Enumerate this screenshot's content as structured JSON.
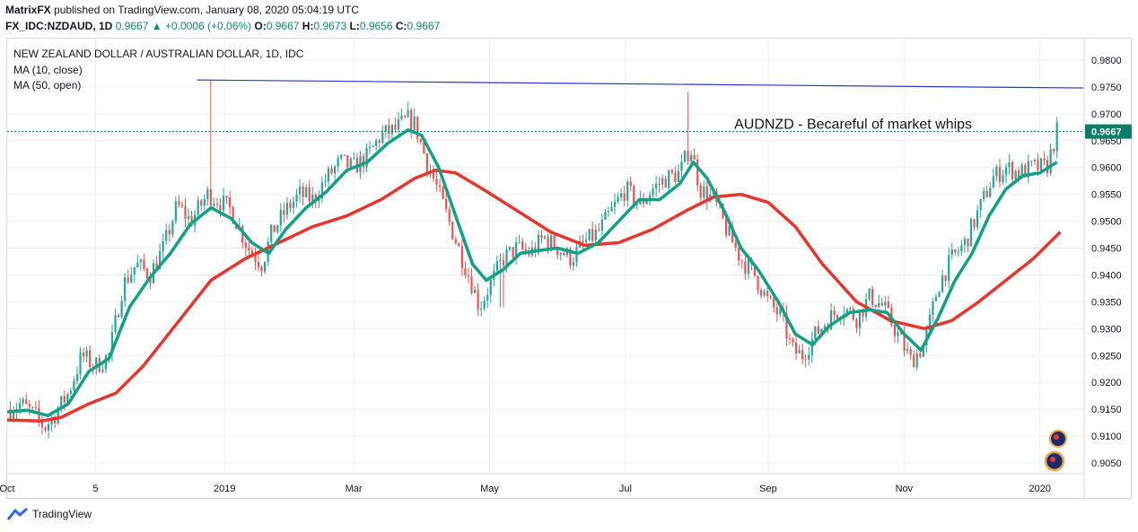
{
  "header": {
    "publisher": "MatrixFX",
    "published_text": " published on TradingView.com, January 08, 2020 05:04:19 UTC",
    "symbol": "FX_IDC:NZDAUD, 1D",
    "last": "0.9667",
    "arrow": "▲",
    "change": "+0.0006 (+0.06%)",
    "o_label": "O:",
    "o": "0.9667",
    "h_label": "H:",
    "h": "0.9673",
    "l_label": "L:",
    "l": "0.9656",
    "c_label": "C:",
    "c": "0.9667"
  },
  "footer": {
    "brand": "TradingView"
  },
  "chart_data": {
    "type": "candlestick",
    "title": "NEW ZEALAND DOLLAR / AUSTRALIAN DOLLAR, 1D, IDC",
    "indicators": [
      {
        "label": "MA (10, close)",
        "color": "#12a086"
      },
      {
        "label": "MA (50, open)",
        "color": "#e8352e"
      }
    ],
    "ylim": [
      0.903,
      0.984
    ],
    "y_ticks": [
      "0.9800",
      "0.9750",
      "0.9700",
      "0.9650",
      "0.9600",
      "0.9550",
      "0.9500",
      "0.9450",
      "0.9400",
      "0.9350",
      "0.9300",
      "0.9250",
      "0.9200",
      "0.9150",
      "0.9100",
      "0.9050"
    ],
    "x_labels": [
      "Oct",
      "5",
      "2019",
      "Mar",
      "May",
      "Jul",
      "Sep",
      "Nov",
      "2020"
    ],
    "x_label_months": [
      0,
      1.3,
      3.2,
      5.1,
      7.1,
      9.1,
      11.2,
      13.2,
      15.2
    ],
    "x_max_months": 15.85,
    "current_price": 0.9667,
    "current_price_label": "0.9667",
    "annotation": "AUDNZD - Becareful of market whips",
    "annotation_position": [
      10.7,
      0.9672
    ],
    "trendline": [
      [
        2.8,
        0.9763
      ],
      [
        15.85,
        0.9748
      ]
    ],
    "close_path": [
      [
        0.0,
        0.915
      ],
      [
        0.2,
        0.916
      ],
      [
        0.4,
        0.914
      ],
      [
        0.55,
        0.9115
      ],
      [
        0.7,
        0.914
      ],
      [
        0.9,
        0.918
      ],
      [
        1.1,
        0.925
      ],
      [
        1.3,
        0.923
      ],
      [
        1.5,
        0.925
      ],
      [
        1.7,
        0.938
      ],
      [
        1.9,
        0.942
      ],
      [
        2.1,
        0.94
      ],
      [
        2.3,
        0.945
      ],
      [
        2.5,
        0.953
      ],
      [
        2.7,
        0.95
      ],
      [
        2.95,
        0.955
      ],
      [
        3.1,
        0.954
      ],
      [
        3.3,
        0.952
      ],
      [
        3.55,
        0.945
      ],
      [
        3.75,
        0.942
      ],
      [
        3.9,
        0.948
      ],
      [
        4.1,
        0.952
      ],
      [
        4.3,
        0.955
      ],
      [
        4.5,
        0.954
      ],
      [
        4.7,
        0.958
      ],
      [
        4.9,
        0.961
      ],
      [
        5.1,
        0.96
      ],
      [
        5.3,
        0.962
      ],
      [
        5.5,
        0.966
      ],
      [
        5.7,
        0.967
      ],
      [
        5.9,
        0.969
      ],
      [
        6.0,
        0.968
      ],
      [
        6.15,
        0.962
      ],
      [
        6.3,
        0.957
      ],
      [
        6.5,
        0.95
      ],
      [
        6.7,
        0.943
      ],
      [
        6.85,
        0.938
      ],
      [
        6.95,
        0.934
      ],
      [
        7.1,
        0.938
      ],
      [
        7.3,
        0.943
      ],
      [
        7.5,
        0.945
      ],
      [
        7.7,
        0.944
      ],
      [
        7.9,
        0.947
      ],
      [
        8.1,
        0.945
      ],
      [
        8.3,
        0.943
      ],
      [
        8.5,
        0.946
      ],
      [
        8.7,
        0.948
      ],
      [
        8.9,
        0.952
      ],
      [
        9.1,
        0.956
      ],
      [
        9.3,
        0.953
      ],
      [
        9.5,
        0.956
      ],
      [
        9.7,
        0.958
      ],
      [
        9.9,
        0.959
      ],
      [
        10.05,
        0.964
      ],
      [
        10.2,
        0.956
      ],
      [
        10.4,
        0.954
      ],
      [
        10.6,
        0.948
      ],
      [
        10.8,
        0.943
      ],
      [
        11.0,
        0.94
      ],
      [
        11.2,
        0.935
      ],
      [
        11.4,
        0.932
      ],
      [
        11.55,
        0.926
      ],
      [
        11.7,
        0.925
      ],
      [
        11.9,
        0.929
      ],
      [
        12.1,
        0.932
      ],
      [
        12.3,
        0.934
      ],
      [
        12.5,
        0.932
      ],
      [
        12.7,
        0.936
      ],
      [
        12.9,
        0.934
      ],
      [
        13.1,
        0.929
      ],
      [
        13.3,
        0.924
      ],
      [
        13.5,
        0.927
      ],
      [
        13.7,
        0.938
      ],
      [
        13.9,
        0.943
      ],
      [
        14.1,
        0.946
      ],
      [
        14.3,
        0.952
      ],
      [
        14.5,
        0.958
      ],
      [
        14.7,
        0.96
      ],
      [
        14.9,
        0.959
      ],
      [
        15.1,
        0.96
      ],
      [
        15.3,
        0.96
      ],
      [
        15.45,
        0.9667
      ]
    ],
    "wick_spikes": [
      {
        "t": 3.0,
        "high": 0.9762,
        "low": 0.952
      },
      {
        "t": 10.02,
        "high": 0.974,
        "low": 0.962
      },
      {
        "t": 7.28,
        "high": 0.944,
        "low": 0.934
      }
    ],
    "ma10_path": [
      [
        0.0,
        0.9145
      ],
      [
        0.3,
        0.9148
      ],
      [
        0.6,
        0.9138
      ],
      [
        0.9,
        0.916
      ],
      [
        1.2,
        0.922
      ],
      [
        1.5,
        0.9245
      ],
      [
        1.8,
        0.934
      ],
      [
        2.1,
        0.9395
      ],
      [
        2.4,
        0.944
      ],
      [
        2.7,
        0.9495
      ],
      [
        3.0,
        0.9525
      ],
      [
        3.3,
        0.9505
      ],
      [
        3.6,
        0.946
      ],
      [
        3.85,
        0.944
      ],
      [
        4.1,
        0.9485
      ],
      [
        4.4,
        0.9525
      ],
      [
        4.7,
        0.9555
      ],
      [
        5.0,
        0.9595
      ],
      [
        5.3,
        0.961
      ],
      [
        5.6,
        0.9645
      ],
      [
        5.9,
        0.967
      ],
      [
        6.1,
        0.966
      ],
      [
        6.35,
        0.96
      ],
      [
        6.6,
        0.951
      ],
      [
        6.85,
        0.942
      ],
      [
        7.05,
        0.939
      ],
      [
        7.3,
        0.941
      ],
      [
        7.55,
        0.944
      ],
      [
        7.8,
        0.9445
      ],
      [
        8.1,
        0.945
      ],
      [
        8.4,
        0.944
      ],
      [
        8.7,
        0.946
      ],
      [
        9.0,
        0.95
      ],
      [
        9.3,
        0.954
      ],
      [
        9.6,
        0.954
      ],
      [
        9.9,
        0.957
      ],
      [
        10.1,
        0.961
      ],
      [
        10.3,
        0.958
      ],
      [
        10.55,
        0.952
      ],
      [
        10.8,
        0.945
      ],
      [
        11.05,
        0.941
      ],
      [
        11.35,
        0.935
      ],
      [
        11.6,
        0.929
      ],
      [
        11.85,
        0.927
      ],
      [
        12.1,
        0.9305
      ],
      [
        12.4,
        0.933
      ],
      [
        12.7,
        0.9335
      ],
      [
        12.95,
        0.933
      ],
      [
        13.2,
        0.929
      ],
      [
        13.45,
        0.926
      ],
      [
        13.7,
        0.932
      ],
      [
        13.95,
        0.939
      ],
      [
        14.2,
        0.944
      ],
      [
        14.45,
        0.951
      ],
      [
        14.7,
        0.956
      ],
      [
        14.95,
        0.9585
      ],
      [
        15.2,
        0.959
      ],
      [
        15.45,
        0.961
      ]
    ],
    "ma50_path": [
      [
        0.0,
        0.913
      ],
      [
        0.5,
        0.9128
      ],
      [
        0.8,
        0.9135
      ],
      [
        1.2,
        0.916
      ],
      [
        1.6,
        0.918
      ],
      [
        2.0,
        0.923
      ],
      [
        2.5,
        0.931
      ],
      [
        3.0,
        0.939
      ],
      [
        3.5,
        0.943
      ],
      [
        4.0,
        0.946
      ],
      [
        4.5,
        0.949
      ],
      [
        5.0,
        0.951
      ],
      [
        5.5,
        0.954
      ],
      [
        6.0,
        0.958
      ],
      [
        6.3,
        0.9595
      ],
      [
        6.6,
        0.959
      ],
      [
        7.0,
        0.956
      ],
      [
        7.5,
        0.952
      ],
      [
        8.0,
        0.948
      ],
      [
        8.5,
        0.9455
      ],
      [
        9.0,
        0.946
      ],
      [
        9.5,
        0.9485
      ],
      [
        10.0,
        0.952
      ],
      [
        10.4,
        0.9545
      ],
      [
        10.8,
        0.955
      ],
      [
        11.2,
        0.9535
      ],
      [
        11.6,
        0.949
      ],
      [
        12.0,
        0.942
      ],
      [
        12.5,
        0.935
      ],
      [
        13.0,
        0.9315
      ],
      [
        13.5,
        0.93
      ],
      [
        13.9,
        0.9315
      ],
      [
        14.3,
        0.935
      ],
      [
        14.7,
        0.939
      ],
      [
        15.1,
        0.943
      ],
      [
        15.5,
        0.948
      ]
    ],
    "colors": {
      "up": "#26a69a",
      "down": "#ef5350",
      "ma10": "#12a086",
      "ma50": "#e8352e",
      "trend": "#2c38c8",
      "price": "#0b7d6b"
    }
  }
}
